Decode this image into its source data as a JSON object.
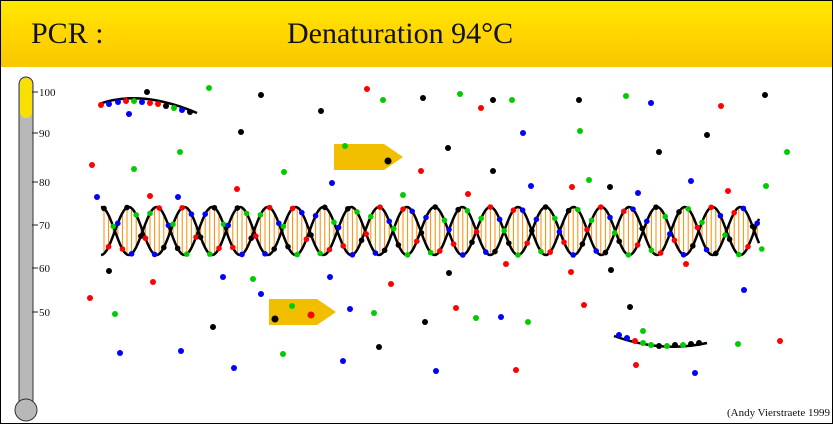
{
  "header": {
    "title_left": "PCR :",
    "title_step": "Denaturation 94°C",
    "background_color": "#ffd800"
  },
  "thermometer": {
    "ticks": [
      "100",
      "90",
      "80",
      "70",
      "60",
      "50"
    ],
    "level_fraction": 0.92,
    "fill_color": "#f8e000",
    "tube_color": "#b8b8b8"
  },
  "nucleotide_colors": {
    "A": "#00cc00",
    "T": "#ff0000",
    "G": "#000000",
    "C": "#0000ff"
  },
  "strand_color": "#000000",
  "rung_color": "#ff8800",
  "primer_color": "#f2be00",
  "credit": "(Andy Vierstraete 1999"
}
